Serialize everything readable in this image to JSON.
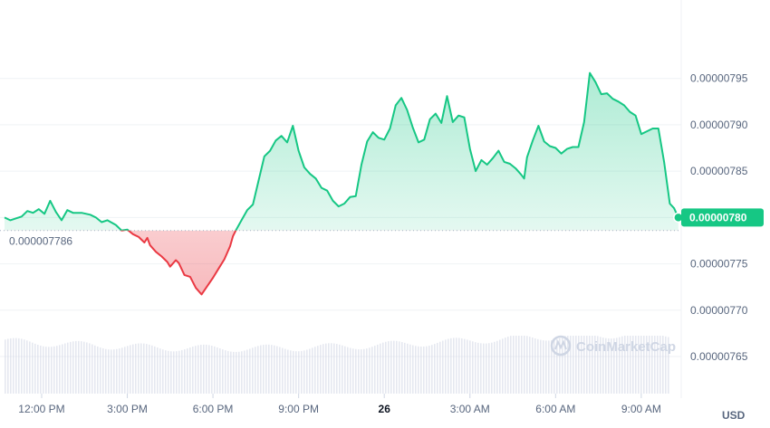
{
  "chart_data": {
    "type": "line",
    "currency": "USD",
    "reference_value": 7.786e-06,
    "reference_label": "0.000007786",
    "current_value": 7.8e-06,
    "current_label": "0.00000780",
    "ylim": [
      7.61e-06,
      8.02e-06
    ],
    "yticks": [
      {
        "value": 7.95e-06,
        "label": "0.00000795"
      },
      {
        "value": 7.9e-06,
        "label": "0.00000790"
      },
      {
        "value": 7.85e-06,
        "label": "0.00000785"
      },
      {
        "value": 7.8e-06,
        "label": "0.00000780"
      },
      {
        "value": 7.75e-06,
        "label": "0.00000775"
      },
      {
        "value": 7.7e-06,
        "label": "0.00000770"
      },
      {
        "value": 7.65e-06,
        "label": "0.00000765"
      }
    ],
    "xlim": [
      10.7,
      34.4
    ],
    "xticks": [
      {
        "hour": 12,
        "label": "12:00 PM",
        "bold": false
      },
      {
        "hour": 15,
        "label": "3:00 PM",
        "bold": false
      },
      {
        "hour": 18,
        "label": "6:00 PM",
        "bold": false
      },
      {
        "hour": 21,
        "label": "9:00 PM",
        "bold": false
      },
      {
        "hour": 24,
        "label": "26",
        "bold": true
      },
      {
        "hour": 27,
        "label": "3:00 AM",
        "bold": false
      },
      {
        "hour": 30,
        "label": "6:00 AM",
        "bold": false
      },
      {
        "hour": 33,
        "label": "9:00 AM",
        "bold": false
      }
    ],
    "series": [
      {
        "points": [
          [
            10.7,
            7.8
          ],
          [
            10.9,
            7.797
          ],
          [
            11.3,
            7.801
          ],
          [
            11.5,
            7.807
          ],
          [
            11.7,
            7.805
          ],
          [
            11.9,
            7.809
          ],
          [
            12.1,
            7.804
          ],
          [
            12.3,
            7.818
          ],
          [
            12.5,
            7.806
          ],
          [
            12.7,
            7.797
          ],
          [
            12.9,
            7.808
          ],
          [
            13.1,
            7.805
          ],
          [
            13.4,
            7.805
          ],
          [
            13.7,
            7.803
          ],
          [
            13.9,
            7.8
          ],
          [
            14.1,
            7.795
          ],
          [
            14.3,
            7.797
          ],
          [
            14.6,
            7.792
          ],
          [
            14.8,
            7.786
          ],
          [
            15.0,
            7.787
          ],
          [
            15.2,
            7.782
          ],
          [
            15.4,
            7.779
          ],
          [
            15.6,
            7.773
          ],
          [
            15.7,
            7.778
          ],
          [
            15.8,
            7.77
          ],
          [
            16.0,
            7.763
          ],
          [
            16.2,
            7.758
          ],
          [
            16.4,
            7.752
          ],
          [
            16.5,
            7.747
          ],
          [
            16.7,
            7.754
          ],
          [
            16.8,
            7.751
          ],
          [
            17.0,
            7.738
          ],
          [
            17.2,
            7.736
          ],
          [
            17.4,
            7.724
          ],
          [
            17.6,
            7.717
          ],
          [
            17.8,
            7.726
          ],
          [
            18.0,
            7.735
          ],
          [
            18.2,
            7.745
          ],
          [
            18.4,
            7.755
          ],
          [
            18.6,
            7.769
          ],
          [
            18.7,
            7.78
          ],
          [
            18.8,
            7.786
          ],
          [
            19.0,
            7.797
          ],
          [
            19.2,
            7.808
          ],
          [
            19.4,
            7.814
          ],
          [
            19.6,
            7.84
          ],
          [
            19.8,
            7.866
          ],
          [
            20.0,
            7.872
          ],
          [
            20.2,
            7.883
          ],
          [
            20.4,
            7.888
          ],
          [
            20.6,
            7.881
          ],
          [
            20.8,
            7.899
          ],
          [
            21.0,
            7.872
          ],
          [
            21.2,
            7.854
          ],
          [
            21.4,
            7.847
          ],
          [
            21.6,
            7.842
          ],
          [
            21.8,
            7.832
          ],
          [
            22.0,
            7.829
          ],
          [
            22.2,
            7.818
          ],
          [
            22.4,
            7.812
          ],
          [
            22.6,
            7.815
          ],
          [
            22.8,
            7.822
          ],
          [
            23.0,
            7.823
          ],
          [
            23.2,
            7.857
          ],
          [
            23.4,
            7.882
          ],
          [
            23.6,
            7.892
          ],
          [
            23.8,
            7.886
          ],
          [
            24.0,
            7.884
          ],
          [
            24.2,
            7.896
          ],
          [
            24.4,
            7.921
          ],
          [
            24.6,
            7.929
          ],
          [
            24.8,
            7.916
          ],
          [
            25.0,
            7.897
          ],
          [
            25.2,
            7.881
          ],
          [
            25.4,
            7.884
          ],
          [
            25.6,
            7.906
          ],
          [
            25.8,
            7.912
          ],
          [
            26.0,
            7.902
          ],
          [
            26.2,
            7.931
          ],
          [
            26.4,
            7.903
          ],
          [
            26.6,
            7.91
          ],
          [
            26.8,
            7.908
          ],
          [
            27.0,
            7.874
          ],
          [
            27.2,
            7.85
          ],
          [
            27.4,
            7.862
          ],
          [
            27.6,
            7.857
          ],
          [
            27.8,
            7.864
          ],
          [
            28.0,
            7.872
          ],
          [
            28.2,
            7.86
          ],
          [
            28.4,
            7.858
          ],
          [
            28.6,
            7.853
          ],
          [
            28.8,
            7.846
          ],
          [
            28.9,
            7.842
          ],
          [
            29.0,
            7.865
          ],
          [
            29.2,
            7.883
          ],
          [
            29.4,
            7.899
          ],
          [
            29.6,
            7.882
          ],
          [
            29.8,
            7.877
          ],
          [
            30.0,
            7.875
          ],
          [
            30.2,
            7.869
          ],
          [
            30.4,
            7.874
          ],
          [
            30.6,
            7.876
          ],
          [
            30.8,
            7.876
          ],
          [
            31.0,
            7.903
          ],
          [
            31.2,
            7.956
          ],
          [
            31.4,
            7.946
          ],
          [
            31.6,
            7.933
          ],
          [
            31.8,
            7.934
          ],
          [
            32.0,
            7.928
          ],
          [
            32.2,
            7.925
          ],
          [
            32.4,
            7.921
          ],
          [
            32.6,
            7.914
          ],
          [
            32.8,
            7.91
          ],
          [
            33.0,
            7.89
          ],
          [
            33.2,
            7.893
          ],
          [
            33.4,
            7.896
          ],
          [
            33.6,
            7.896
          ],
          [
            33.8,
            7.86
          ],
          [
            34.0,
            7.815
          ],
          [
            34.15,
            7.81
          ],
          [
            34.3,
            7.8
          ]
        ]
      }
    ],
    "volume_bars_visible": true,
    "grid": true
  },
  "watermark": {
    "icon": "coinmarketcap-logo-icon",
    "text": "CoinMarketCap"
  },
  "colors": {
    "up": "#16c784",
    "down": "#ea3943",
    "grid": "#eff2f5",
    "volume": "#cfd6e4",
    "axis_text": "#58667e"
  }
}
